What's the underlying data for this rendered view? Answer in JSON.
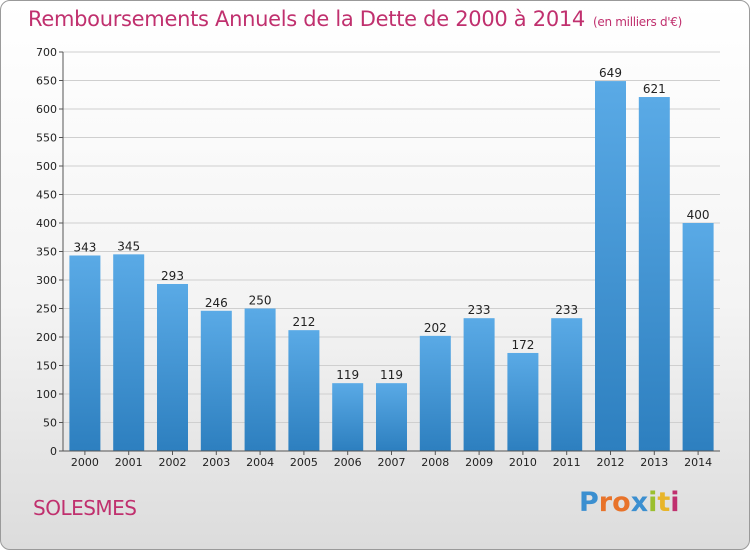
{
  "header": {
    "title": "Remboursements Annuels de la Dette de 2000 à 2014",
    "unit": "(en milliers d'€)"
  },
  "footer": {
    "city": "SOLESMES",
    "logo": "Proxiti",
    "logo_colors": [
      "#3b8fd0",
      "#e8732a",
      "#e8732a",
      "#3b8fd0",
      "#9bbf2e",
      "#e8b52a",
      "#c0306e"
    ]
  },
  "colors": {
    "title": "#c0306e",
    "bar_top": "#5aaae6",
    "bar_bottom": "#2d7fbf",
    "grid": "#cfcfcf"
  },
  "chart_data": {
    "type": "bar",
    "title": "Remboursements Annuels de la Dette de 2000 à 2014",
    "subtitle": "(en milliers d'€)",
    "xlabel": "",
    "ylabel": "",
    "categories": [
      "2000",
      "2001",
      "2002",
      "2003",
      "2004",
      "2005",
      "2006",
      "2007",
      "2008",
      "2009",
      "2010",
      "2011",
      "2012",
      "2013",
      "2014"
    ],
    "values": [
      343,
      345,
      293,
      246,
      250,
      212,
      119,
      119,
      202,
      233,
      172,
      233,
      649,
      621,
      400
    ],
    "ylim": [
      0,
      700
    ],
    "yticks": [
      0,
      50,
      100,
      150,
      200,
      250,
      300,
      350,
      400,
      450,
      500,
      550,
      600,
      650,
      700
    ],
    "grid": true,
    "data_labels": true
  }
}
